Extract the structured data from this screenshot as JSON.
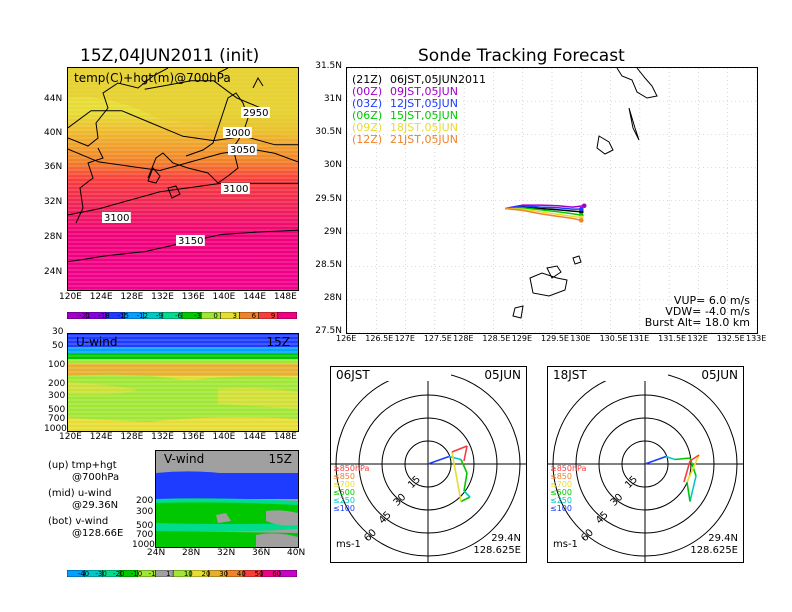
{
  "left": {
    "title": "15Z,04JUN2011 (init)",
    "map_label": "temp(C)+hgt(m)@700hPa",
    "lat_ticks": [
      "44N",
      "40N",
      "36N",
      "32N",
      "28N",
      "24N"
    ],
    "lon_ticks": [
      "120E",
      "124E",
      "128E",
      "132E",
      "136E",
      "140E",
      "144E",
      "148E"
    ],
    "contour_labels": [
      "2950",
      "3000",
      "3050",
      "3100",
      "3100",
      "3150"
    ],
    "temp_scale": [
      "-21",
      "-18",
      "-15",
      "-12",
      "-9",
      "-6",
      "-3",
      "0",
      "3",
      "6",
      "9"
    ],
    "temp_colors": [
      "#a000c8",
      "#8200dc",
      "#1e3cff",
      "#00a0ff",
      "#00c8c8",
      "#00dc8c",
      "#00c800",
      "#a0e632",
      "#e6dc32",
      "#f08228",
      "#fa3c3c",
      "#f00082"
    ],
    "u_panel": {
      "label": "U-wind",
      "time": "15Z",
      "p_ticks": [
        "30",
        "50",
        "100",
        "200",
        "300",
        "500",
        "700",
        "1000"
      ],
      "lon_ticks": [
        "120E",
        "124E",
        "128E",
        "132E",
        "136E",
        "140E",
        "144E",
        "148E"
      ]
    },
    "v_panel": {
      "label": "V-wind",
      "time": "15Z",
      "p_ticks": [
        "200",
        "300",
        "500",
        "700",
        "1000"
      ],
      "lat_ticks": [
        "24N",
        "28N",
        "32N",
        "36N",
        "40N"
      ]
    },
    "wind_scale": [
      "-40",
      "-30",
      "-20",
      "-10",
      "-1",
      "1",
      "10",
      "20",
      "30",
      "40",
      "50",
      "60"
    ],
    "wind_colors": [
      "#00a0ff",
      "#00c8c8",
      "#00dc8c",
      "#00c800",
      "#a0e632",
      "#a0a0a0",
      "#a0e632",
      "#e6dc32",
      "#e6af2d",
      "#f08228",
      "#fa3c3c",
      "#f00082",
      "#c800c8"
    ],
    "legend_notes": [
      {
        "a": "(up) tmp+hgt",
        "b": "@700hPa"
      },
      {
        "a": "(mid) u-wind",
        "b": "@29.36N"
      },
      {
        "a": "(bot) v-wind",
        "b": "@128.66E"
      }
    ]
  },
  "right": {
    "title": "Sonde Tracking Forecast",
    "lat_ticks": [
      "31.5N",
      "31N",
      "30.5N",
      "30N",
      "29.5N",
      "29N",
      "28.5N",
      "28N",
      "27.5N"
    ],
    "lon_ticks": [
      "126E",
      "126.5E",
      "127E",
      "127.5E",
      "128E",
      "128.5E",
      "129E",
      "129.5E",
      "130E",
      "130.5E",
      "131E",
      "131.5E",
      "132E",
      "132.5E",
      "133E"
    ],
    "launches": [
      {
        "code": "(21Z)",
        "time": "06JST,05JUN2011",
        "color": "#000000"
      },
      {
        "code": "(00Z)",
        "time": "09JST,05JUN",
        "color": "#a000c8"
      },
      {
        "code": "(03Z)",
        "time": "12JST,05JUN",
        "color": "#1e3cff"
      },
      {
        "code": "(06Z)",
        "time": "15JST,05JUN",
        "color": "#00c800"
      },
      {
        "code": "(09Z)",
        "time": "18JST,05JUN",
        "color": "#e6dc32"
      },
      {
        "code": "(12Z)",
        "time": "21JST,05JUN",
        "color": "#f08228"
      }
    ],
    "params": [
      "VUP= 6.0 m/s",
      "VDW= -4.0 m/s",
      "Burst Alt= 18.0 km"
    ]
  },
  "hodographs": [
    {
      "time": "06JST",
      "date": "05JUN",
      "lat": "29.4N",
      "lon": "128.625E",
      "unit": "ms-1",
      "rings": [
        "15",
        "30",
        "45",
        "60"
      ]
    },
    {
      "time": "18JST",
      "date": "05JUN",
      "lat": "29.4N",
      "lon": "128.625E",
      "unit": "ms-1",
      "rings": [
        "15",
        "30",
        "45",
        "60"
      ]
    }
  ],
  "hodo_levels": [
    {
      "label": "≥850hPa",
      "color": "#fa3c3c"
    },
    {
      "label": "≤850",
      "color": "#f08228"
    },
    {
      "label": "≤700",
      "color": "#e6dc32"
    },
    {
      "label": "≤500",
      "color": "#00c800"
    },
    {
      "label": "≤250",
      "color": "#00c8c8"
    },
    {
      "label": "≤100",
      "color": "#1e3cff"
    }
  ],
  "chart_data": [
    {
      "type": "heatmap",
      "title": "15Z,04JUN2011 (init)",
      "annotation": "temp(C)+hgt(m)@700hPa",
      "x_ticks": [
        "120E",
        "124E",
        "128E",
        "132E",
        "136E",
        "140E",
        "144E",
        "148E"
      ],
      "y_ticks": [
        "44N",
        "40N",
        "36N",
        "32N",
        "28N",
        "24N"
      ],
      "xlim": [
        120,
        150
      ],
      "ylim": [
        22,
        48
      ],
      "color_levels": [
        -21,
        -18,
        -15,
        -12,
        -9,
        -6,
        -3,
        0,
        3,
        6,
        9
      ],
      "contours": [
        {
          "label": "2950",
          "lon": [
            130,
            133,
            136,
            139,
            142,
            146
          ],
          "lat": [
            45.5,
            46,
            46.5,
            46.5,
            44.5,
            43
          ]
        },
        {
          "label": "3000",
          "lon": [
            120,
            123,
            127,
            131,
            135,
            139,
            143,
            147,
            150
          ],
          "lat": [
            41,
            43,
            43,
            41.5,
            40,
            39.5,
            40,
            39,
            39
          ]
        },
        {
          "label": "3050",
          "lon": [
            120,
            124,
            128,
            132,
            136,
            140,
            144,
            147,
            150
          ],
          "lat": [
            38.5,
            37,
            36.5,
            36,
            37,
            38,
            38.5,
            38,
            37
          ]
        },
        {
          "label": "3100",
          "lon": [
            120,
            124,
            128,
            132,
            136,
            140,
            144,
            148,
            150
          ],
          "lat": [
            30.8,
            31.5,
            32.5,
            33.5,
            34,
            34.5,
            34.5,
            34.5,
            34.5
          ]
        },
        {
          "label": "3150",
          "lon": [
            120,
            125,
            130,
            135,
            140,
            145,
            150
          ],
          "lat": [
            25.3,
            26,
            26.5,
            27.5,
            28.5,
            28.8,
            29
          ]
        }
      ]
    },
    {
      "type": "heatmap",
      "label": "U-wind",
      "time": "15Z",
      "x_ticks": [
        "120E",
        "124E",
        "128E",
        "132E",
        "136E",
        "140E",
        "144E",
        "148E"
      ],
      "y_ticks": [
        "30",
        "50",
        "100",
        "200",
        "300",
        "500",
        "700",
        "1000"
      ],
      "yscale": "log",
      "ylim": [
        1000,
        30
      ],
      "color_levels": [
        -40,
        -30,
        -20,
        -10,
        -1,
        1,
        10,
        20,
        30,
        40,
        50,
        60
      ]
    },
    {
      "type": "heatmap",
      "label": "V-wind",
      "time": "15Z",
      "x_ticks": [
        "24N",
        "28N",
        "32N",
        "36N",
        "40N"
      ],
      "y_ticks": [
        "200",
        "300",
        "500",
        "700",
        "1000"
      ],
      "yscale": "log",
      "ylim": [
        1000,
        30
      ],
      "color_levels": [
        -40,
        -30,
        -20,
        -10,
        -1,
        1,
        10,
        20,
        30,
        40,
        50,
        60
      ]
    },
    {
      "type": "line",
      "title": "Sonde Tracking Forecast",
      "xlim": [
        126,
        133
      ],
      "ylim": [
        27.5,
        31.5
      ],
      "grid": true,
      "series": [
        {
          "name": "(21Z) 06JST,05JUN2011",
          "lon": [
            128.7,
            129.0,
            129.3,
            129.6,
            129.85,
            130.0
          ],
          "lat": [
            29.38,
            29.4,
            29.38,
            29.36,
            29.34,
            29.33
          ]
        },
        {
          "name": "(00Z) 09JST,05JUN",
          "lon": [
            128.7,
            129.0,
            129.3,
            129.6,
            129.85,
            130.05
          ],
          "lat": [
            29.38,
            29.43,
            29.43,
            29.42,
            29.4,
            29.42
          ]
        },
        {
          "name": "(03Z) 12JST,05JUN",
          "lon": [
            128.7,
            129.0,
            129.3,
            129.6,
            129.85,
            130.0
          ],
          "lat": [
            29.38,
            29.42,
            29.4,
            29.39,
            29.37,
            29.37
          ]
        },
        {
          "name": "(06Z) 15JST,05JUN",
          "lon": [
            128.7,
            129.0,
            129.3,
            129.6,
            129.85,
            130.0
          ],
          "lat": [
            29.38,
            29.39,
            29.36,
            29.33,
            29.3,
            29.28
          ]
        },
        {
          "name": "(09Z) 18JST,05JUN",
          "lon": [
            128.7,
            129.0,
            129.3,
            129.6,
            129.85,
            130.0
          ],
          "lat": [
            29.38,
            29.37,
            29.33,
            29.29,
            29.26,
            29.24
          ]
        },
        {
          "name": "(12Z) 21JST,05JUN",
          "lon": [
            128.7,
            129.0,
            129.3,
            129.6,
            129.85,
            130.0
          ],
          "lat": [
            29.38,
            29.35,
            29.3,
            29.26,
            29.23,
            29.2
          ]
        }
      ]
    }
  ]
}
